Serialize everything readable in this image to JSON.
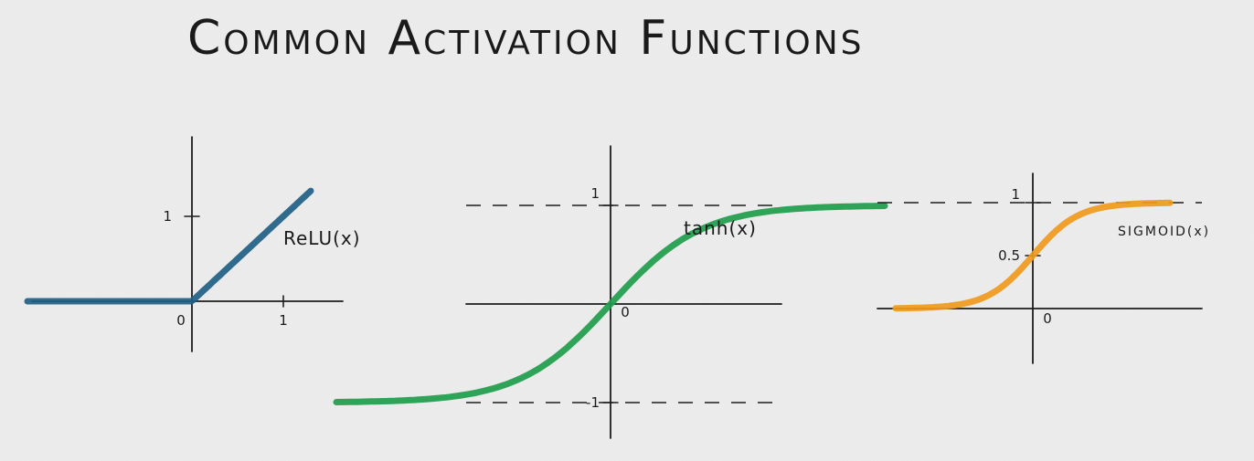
{
  "title": "Common Activation Functions",
  "chart_data": [
    {
      "type": "line",
      "function": "relu",
      "series": [
        {
          "name": "ReLU(x)",
          "color": "#1f5f85"
        }
      ],
      "x": [
        -1.8,
        0,
        1.3
      ],
      "y": [
        0,
        0,
        1.3
      ],
      "xlim": [
        -1.8,
        1.6
      ],
      "ylim": [
        -0.7,
        1.8
      ],
      "x_ticks": [
        {
          "value": 0,
          "label": "0"
        },
        {
          "value": 1,
          "label": "1"
        }
      ],
      "y_ticks": [
        {
          "value": 1,
          "label": "1"
        }
      ],
      "asymptotes": [],
      "grid": false
    },
    {
      "type": "line",
      "function": "tanh",
      "series": [
        {
          "name": "tanh(x)",
          "color": "#1e9d4c"
        }
      ],
      "x": [
        -3,
        -2,
        -1.5,
        -1,
        -0.5,
        0,
        0.5,
        1,
        1.5,
        2,
        3
      ],
      "y": [
        -0.995,
        -0.964,
        -0.905,
        -0.762,
        -0.462,
        0,
        0.462,
        0.762,
        0.905,
        0.964,
        0.995
      ],
      "xlim": [
        -3.5,
        3.9
      ],
      "ylim": [
        -1.5,
        1.5
      ],
      "x_ticks": [
        {
          "value": 0,
          "label": "0"
        }
      ],
      "y_ticks": [
        {
          "value": 1,
          "label": "1"
        },
        {
          "value": -1,
          "label": "-1"
        }
      ],
      "asymptotes": [
        1,
        -1
      ],
      "grid": false
    },
    {
      "type": "line",
      "function": "sigmoid",
      "series": [
        {
          "name": "SIGMOID(x)",
          "color": "#f09a1c"
        }
      ],
      "x": [
        -6,
        -4,
        -3,
        -2,
        -1,
        0,
        1,
        2,
        3,
        4,
        6
      ],
      "y": [
        0.002,
        0.018,
        0.047,
        0.119,
        0.269,
        0.5,
        0.731,
        0.881,
        0.953,
        0.982,
        0.998
      ],
      "xlim": [
        -6.6,
        7.4
      ],
      "ylim": [
        -0.6,
        1.2
      ],
      "x_ticks": [
        {
          "value": 0,
          "label": "0"
        }
      ],
      "y_ticks": [
        {
          "value": 0.5,
          "label": "0.5"
        },
        {
          "value": 1,
          "label": "1"
        }
      ],
      "asymptotes": [
        1
      ],
      "grid": false
    }
  ]
}
